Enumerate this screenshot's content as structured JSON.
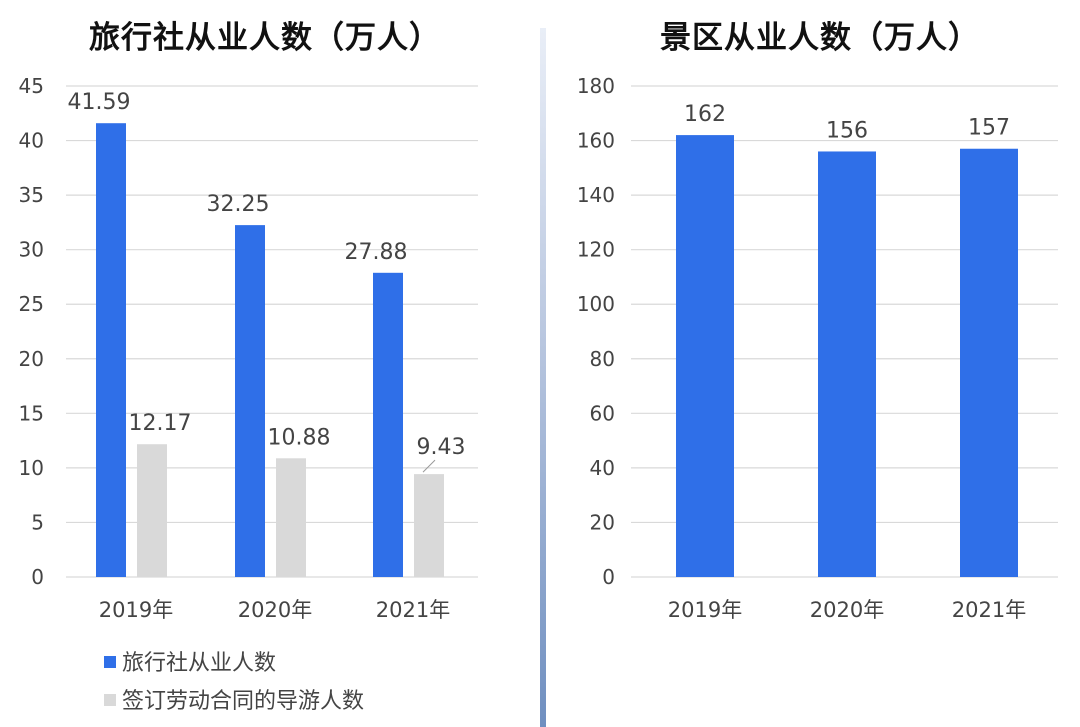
{
  "colors": {
    "primary": "#2f6fe8",
    "secondary": "#d9d9d9",
    "grid": "#d9d9d9"
  },
  "chart_data": [
    {
      "type": "bar",
      "title": "旅行社从业人数（万人）",
      "categories": [
        "2019年",
        "2020年",
        "2021年"
      ],
      "series": [
        {
          "name": "旅行社从业人数",
          "values": [
            41.59,
            32.25,
            27.88
          ],
          "color": "#2f6fe8"
        },
        {
          "name": "签订劳动合同的导游人数",
          "values": [
            12.17,
            10.88,
            9.43
          ],
          "color": "#d9d9d9"
        }
      ],
      "data_labels": [
        [
          "41.59",
          "32.25",
          "27.88"
        ],
        [
          "12.17",
          "10.88",
          "9.43"
        ]
      ],
      "ylim": [
        0,
        45
      ],
      "yticks": [
        0,
        5,
        10,
        15,
        20,
        25,
        30,
        35,
        40,
        45
      ],
      "grid": true,
      "legend_position": "bottom-left"
    },
    {
      "type": "bar",
      "title": "景区从业人数（万人）",
      "categories": [
        "2019年",
        "2020年",
        "2021年"
      ],
      "series": [
        {
          "values": [
            162,
            156,
            157
          ],
          "color": "#2f6fe8"
        }
      ],
      "data_labels": [
        [
          "162",
          "156",
          "157"
        ]
      ],
      "ylim": [
        0,
        180
      ],
      "yticks": [
        0,
        20,
        40,
        60,
        80,
        100,
        120,
        140,
        160,
        180
      ],
      "grid": true,
      "legend_position": "none"
    }
  ]
}
